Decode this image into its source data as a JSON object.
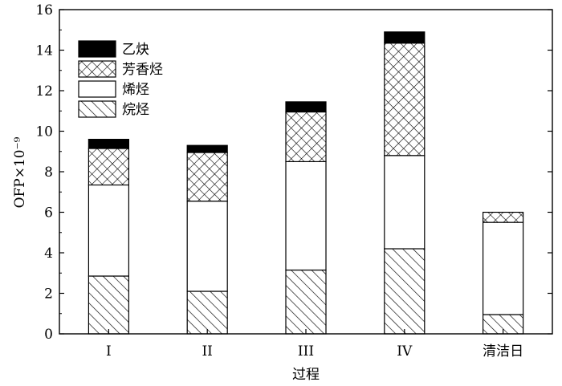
{
  "chart_data": {
    "type": "bar",
    "stacked": true,
    "categories": [
      "I",
      "II",
      "III",
      "IV",
      "清洁日"
    ],
    "series": [
      {
        "name": "烷烃",
        "pattern": "diagonal-hatch",
        "values": [
          2.85,
          2.1,
          3.15,
          4.2,
          0.95
        ]
      },
      {
        "name": "烯烃",
        "pattern": "white",
        "values": [
          4.5,
          4.45,
          5.35,
          4.6,
          4.55
        ]
      },
      {
        "name": "芳香烃",
        "pattern": "crosshatch",
        "values": [
          1.8,
          2.4,
          2.45,
          5.55,
          0.5
        ]
      },
      {
        "name": "乙炔",
        "pattern": "black",
        "values": [
          0.45,
          0.35,
          0.5,
          0.55,
          0.0
        ]
      }
    ],
    "legend_order": [
      "乙炔",
      "芳香烃",
      "烯烃",
      "烷烃"
    ],
    "legend_position": "top-left",
    "xlabel": "过程",
    "ylabel": "OFP×10⁻⁹",
    "ylim": [
      0,
      16
    ],
    "yticks": [
      "0",
      "2",
      "4",
      "6",
      "8",
      "10",
      "12",
      "14",
      "16"
    ],
    "grid": false
  }
}
